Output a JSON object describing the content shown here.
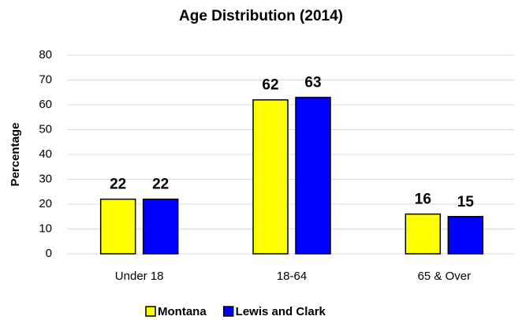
{
  "chart_data": {
    "type": "bar",
    "title": "Age Distribution (2014)",
    "y_label": "Percentage",
    "categories": [
      "Under 18",
      "18-64",
      "65 & Over"
    ],
    "series": [
      {
        "name": "Montana",
        "color": "#ffff00",
        "values": [
          22,
          62,
          16
        ]
      },
      {
        "name": "Lewis and Clark",
        "color": "#0000ff",
        "values": [
          22,
          63,
          15
        ]
      }
    ],
    "ylim": [
      0,
      80
    ],
    "yticks": [
      0,
      10,
      20,
      30,
      40,
      50,
      60,
      70,
      80
    ],
    "grid": true,
    "legend": "bottom"
  }
}
